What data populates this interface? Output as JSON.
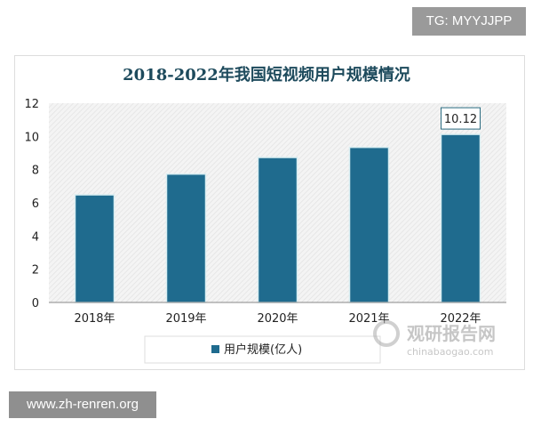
{
  "overlay": {
    "tag": "TG: MYYJJPP",
    "site": "www.zh-renren.org",
    "watermark_cn": "观研报告网",
    "watermark_en": "chinabaogao.com"
  },
  "chart_data": {
    "type": "bar",
    "title": "2018-2022年我国短视频用户规模情况",
    "categories": [
      "2018年",
      "2019年",
      "2020年",
      "2021年",
      "2022年"
    ],
    "series": [
      {
        "name": "用户规模(亿人)",
        "values": [
          6.48,
          7.73,
          8.73,
          9.34,
          10.12
        ]
      }
    ],
    "data_labels": [
      {
        "category": "2022年",
        "text": "10.12"
      }
    ],
    "yticks": [
      "0",
      "2",
      "4",
      "6",
      "8",
      "10",
      "12"
    ],
    "ylim": [
      0,
      12
    ],
    "legend": "bottom",
    "bar_color": "#1f6b8e",
    "grid": false
  }
}
